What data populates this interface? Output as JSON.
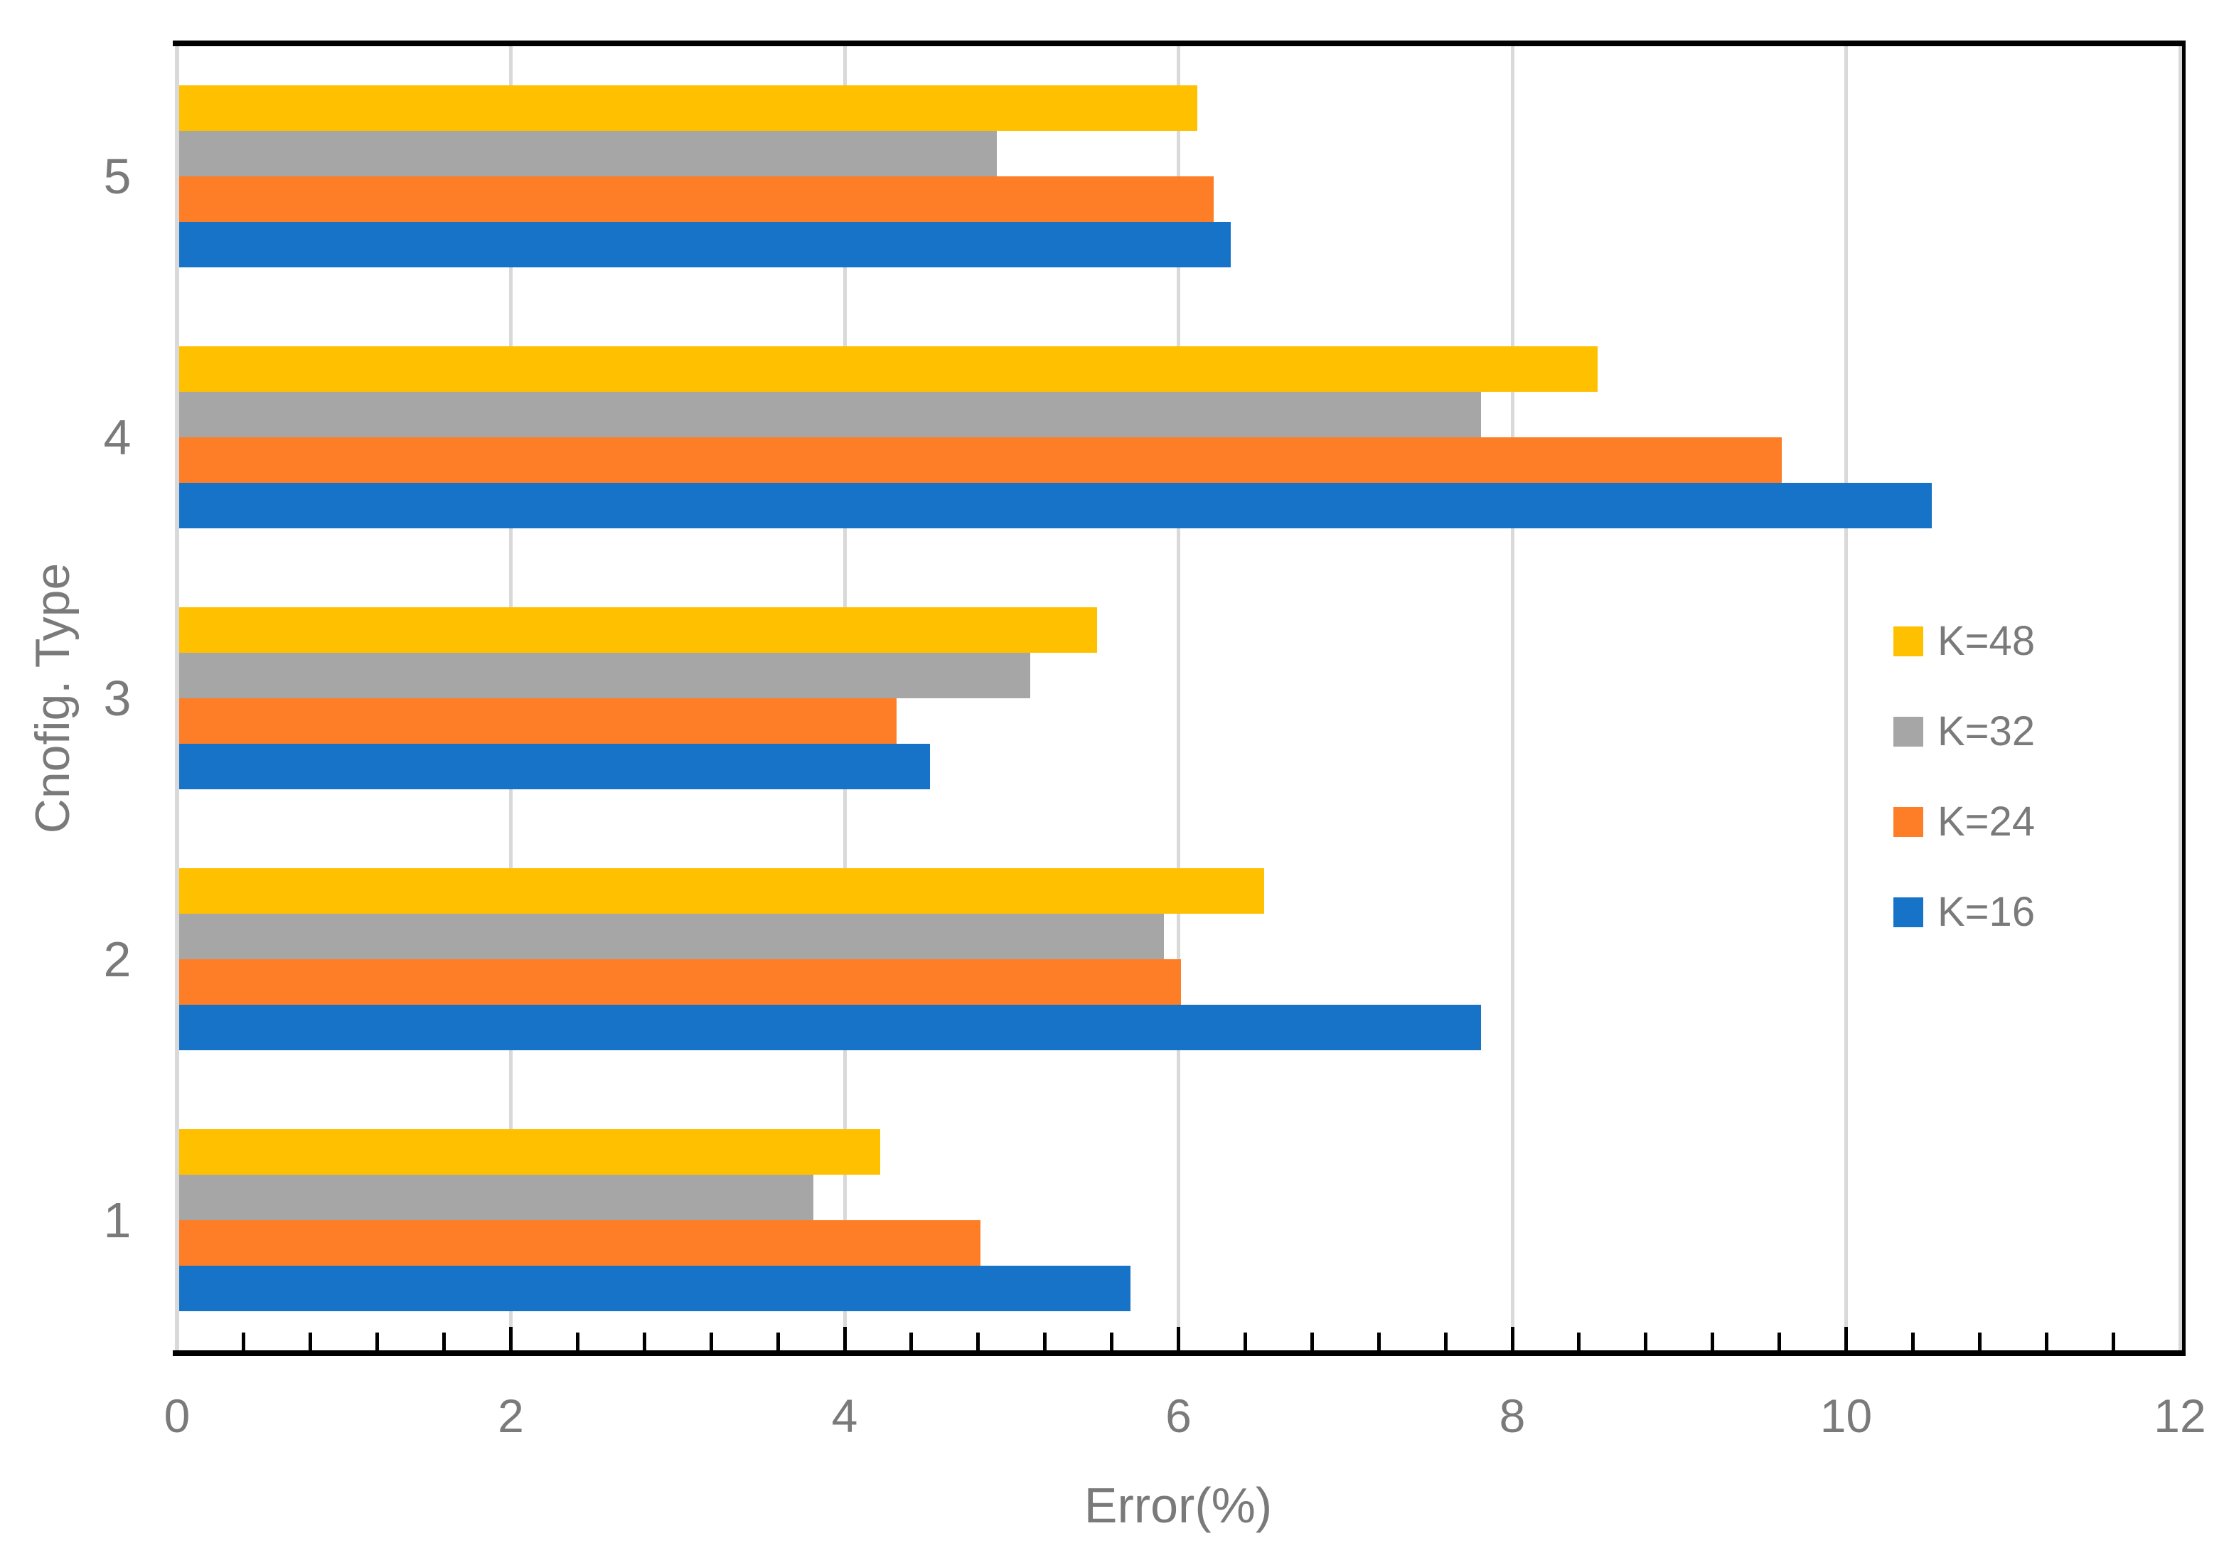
{
  "chart_data": {
    "type": "bar",
    "orientation": "horizontal",
    "title": "",
    "xlabel": "Error(%)",
    "ylabel": "Cnofig. Type",
    "categories": [
      "1",
      "2",
      "3",
      "4",
      "5"
    ],
    "series": [
      {
        "name": "K=16",
        "color": "#1773C7",
        "values": [
          5.7,
          7.8,
          4.5,
          10.5,
          6.3
        ]
      },
      {
        "name": "K=24",
        "color": "#FD7E27",
        "values": [
          4.8,
          6.0,
          4.3,
          9.6,
          6.2
        ]
      },
      {
        "name": "K=32",
        "color": "#A6A6A6",
        "values": [
          3.8,
          5.9,
          5.1,
          7.8,
          4.9
        ]
      },
      {
        "name": "K=48",
        "color": "#FFC000",
        "values": [
          4.2,
          6.5,
          5.5,
          8.5,
          6.1
        ]
      }
    ],
    "xlim": [
      0,
      12
    ],
    "x_tick_labels": [
      "0",
      "2",
      "4",
      "6",
      "8",
      "10",
      "12"
    ],
    "x_major_tick_step": 2,
    "x_minor_tick_step": 0.4,
    "grid": true,
    "legend": {
      "entries": [
        "K=48",
        "K=32",
        "K=24",
        "K=16"
      ],
      "position": "inside-right"
    },
    "colors": {
      "gridline": "#D9D9D9",
      "zero_line": "#D9D9D9",
      "axis_frame": "#000000",
      "tick": "#000000",
      "text": "#7A7A7A"
    }
  }
}
